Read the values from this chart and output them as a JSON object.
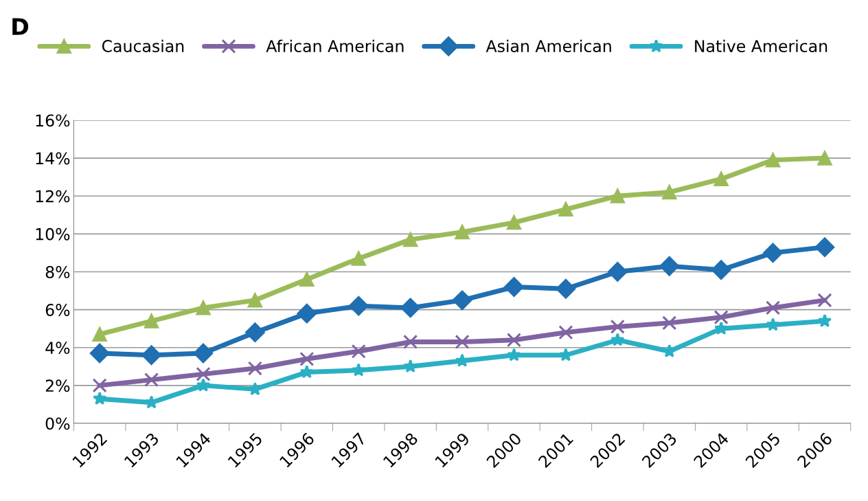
{
  "chart_data": {
    "type": "line",
    "title": "D",
    "categories": [
      "1992",
      "1993",
      "1994",
      "1995",
      "1996",
      "1997",
      "1998",
      "1999",
      "2000",
      "2001",
      "2002",
      "2003",
      "2004",
      "2005",
      "2006"
    ],
    "series": [
      {
        "name": "Caucasian",
        "color": "#9bbb59",
        "marker": "triangle",
        "values": [
          4.7,
          5.4,
          6.1,
          6.5,
          7.6,
          8.7,
          9.7,
          10.1,
          10.6,
          11.3,
          12.0,
          12.2,
          12.9,
          13.9,
          14.0
        ]
      },
      {
        "name": "African American",
        "color": "#8064a2",
        "marker": "cross",
        "values": [
          2.0,
          2.3,
          2.6,
          2.9,
          3.4,
          3.8,
          4.3,
          4.3,
          4.4,
          4.8,
          5.1,
          5.3,
          5.6,
          6.1,
          6.5
        ]
      },
      {
        "name": "Asian American",
        "color": "#1f6fb2",
        "marker": "diamond",
        "values": [
          3.7,
          3.6,
          3.7,
          4.8,
          5.8,
          6.2,
          6.1,
          6.5,
          7.2,
          7.1,
          8.0,
          8.3,
          8.1,
          9.0,
          9.3
        ]
      },
      {
        "name": "Native American",
        "color": "#2ab0c5",
        "marker": "star",
        "values": [
          1.3,
          1.1,
          2.0,
          1.8,
          2.7,
          2.8,
          3.0,
          3.3,
          3.6,
          3.6,
          4.4,
          3.8,
          5.0,
          5.2,
          5.4
        ]
      }
    ],
    "ylim": [
      0,
      16
    ],
    "yticks": [
      {
        "value": 0,
        "label": "0%"
      },
      {
        "value": 2,
        "label": "2%"
      },
      {
        "value": 4,
        "label": "4%"
      },
      {
        "value": 6,
        "label": "6%"
      },
      {
        "value": 8,
        "label": "8%"
      },
      {
        "value": 10,
        "label": "10%"
      },
      {
        "value": 12,
        "label": "12%"
      },
      {
        "value": 14,
        "label": "14%"
      },
      {
        "value": 16,
        "label": "16%"
      }
    ],
    "grid": "y",
    "legend": "top",
    "line_style": "solid"
  }
}
